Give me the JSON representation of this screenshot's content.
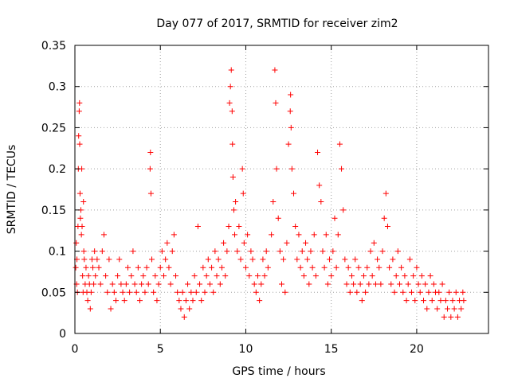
{
  "chart_data": {
    "type": "scatter",
    "title": "Day 077 of 2017, SRMTID for receiver zim2",
    "xlabel": "GPS time / hours",
    "ylabel": "SRMTID / TECUs",
    "xlim": [
      0,
      24.2
    ],
    "ylim": [
      0,
      0.35
    ],
    "xticks": [
      0,
      5,
      10,
      15,
      20
    ],
    "xtick_labels": [
      "0",
      "5",
      "10",
      "15",
      "20"
    ],
    "yticks": [
      0,
      0.05,
      0.1,
      0.15,
      0.2,
      0.25,
      0.3,
      0.35
    ],
    "ytick_labels": [
      "0",
      "0.05",
      "0.1",
      "0.15",
      "0.2",
      "0.25",
      "0.3",
      "0.35"
    ],
    "grid": true,
    "marker": "plus",
    "color": "#ff0000",
    "series": [
      {
        "name": "SRMTID",
        "points": [
          [
            0.05,
            0.08
          ],
          [
            0.08,
            0.11
          ],
          [
            0.1,
            0.06
          ],
          [
            0.12,
            0.09
          ],
          [
            0.15,
            0.05
          ],
          [
            0.18,
            0.13
          ],
          [
            0.2,
            0.2
          ],
          [
            0.22,
            0.24
          ],
          [
            0.25,
            0.27
          ],
          [
            0.27,
            0.28
          ],
          [
            0.28,
            0.23
          ],
          [
            0.3,
            0.17
          ],
          [
            0.32,
            0.14
          ],
          [
            0.35,
            0.15
          ],
          [
            0.38,
            0.12
          ],
          [
            0.4,
            0.2
          ],
          [
            0.42,
            0.13
          ],
          [
            0.45,
            0.07
          ],
          [
            0.48,
            0.05
          ],
          [
            0.5,
            0.16
          ],
          [
            0.52,
            0.1
          ],
          [
            0.55,
            0.09
          ],
          [
            0.6,
            0.06
          ],
          [
            0.65,
            0.08
          ],
          [
            0.7,
            0.05
          ],
          [
            0.75,
            0.04
          ],
          [
            0.8,
            0.07
          ],
          [
            0.85,
            0.06
          ],
          [
            0.9,
            0.03
          ],
          [
            0.95,
            0.05
          ],
          [
            1.0,
            0.09
          ],
          [
            1.05,
            0.08
          ],
          [
            1.1,
            0.06
          ],
          [
            1.15,
            0.1
          ],
          [
            1.2,
            0.07
          ],
          [
            1.3,
            0.09
          ],
          [
            1.4,
            0.08
          ],
          [
            1.5,
            0.06
          ],
          [
            1.6,
            0.1
          ],
          [
            1.7,
            0.12
          ],
          [
            1.8,
            0.07
          ],
          [
            1.9,
            0.05
          ],
          [
            2.0,
            0.09
          ],
          [
            2.1,
            0.03
          ],
          [
            2.2,
            0.06
          ],
          [
            2.3,
            0.05
          ],
          [
            2.4,
            0.04
          ],
          [
            2.5,
            0.07
          ],
          [
            2.6,
            0.09
          ],
          [
            2.7,
            0.06
          ],
          [
            2.8,
            0.05
          ],
          [
            2.9,
            0.04
          ],
          [
            3.0,
            0.06
          ],
          [
            3.1,
            0.08
          ],
          [
            3.2,
            0.05
          ],
          [
            3.3,
            0.07
          ],
          [
            3.4,
            0.1
          ],
          [
            3.5,
            0.06
          ],
          [
            3.6,
            0.05
          ],
          [
            3.7,
            0.08
          ],
          [
            3.8,
            0.04
          ],
          [
            3.9,
            0.06
          ],
          [
            4.0,
            0.07
          ],
          [
            4.1,
            0.05
          ],
          [
            4.2,
            0.08
          ],
          [
            4.3,
            0.06
          ],
          [
            4.4,
            0.2
          ],
          [
            4.42,
            0.22
          ],
          [
            4.45,
            0.17
          ],
          [
            4.5,
            0.09
          ],
          [
            4.6,
            0.05
          ],
          [
            4.7,
            0.07
          ],
          [
            4.8,
            0.04
          ],
          [
            4.9,
            0.06
          ],
          [
            5.0,
            0.08
          ],
          [
            5.1,
            0.1
          ],
          [
            5.2,
            0.07
          ],
          [
            5.3,
            0.09
          ],
          [
            5.4,
            0.11
          ],
          [
            5.5,
            0.08
          ],
          [
            5.6,
            0.06
          ],
          [
            5.7,
            0.1
          ],
          [
            5.8,
            0.12
          ],
          [
            5.9,
            0.07
          ],
          [
            6.0,
            0.05
          ],
          [
            6.1,
            0.04
          ],
          [
            6.2,
            0.03
          ],
          [
            6.3,
            0.05
          ],
          [
            6.4,
            0.02
          ],
          [
            6.5,
            0.04
          ],
          [
            6.6,
            0.06
          ],
          [
            6.7,
            0.03
          ],
          [
            6.8,
            0.05
          ],
          [
            6.9,
            0.04
          ],
          [
            7.0,
            0.07
          ],
          [
            7.1,
            0.05
          ],
          [
            7.2,
            0.13
          ],
          [
            7.3,
            0.06
          ],
          [
            7.4,
            0.04
          ],
          [
            7.5,
            0.08
          ],
          [
            7.6,
            0.05
          ],
          [
            7.7,
            0.07
          ],
          [
            7.8,
            0.09
          ],
          [
            7.9,
            0.06
          ],
          [
            8.0,
            0.08
          ],
          [
            8.1,
            0.05
          ],
          [
            8.2,
            0.1
          ],
          [
            8.3,
            0.07
          ],
          [
            8.4,
            0.09
          ],
          [
            8.5,
            0.06
          ],
          [
            8.6,
            0.08
          ],
          [
            8.7,
            0.11
          ],
          [
            8.8,
            0.07
          ],
          [
            8.9,
            0.1
          ],
          [
            9.0,
            0.13
          ],
          [
            9.05,
            0.28
          ],
          [
            9.1,
            0.3
          ],
          [
            9.15,
            0.32
          ],
          [
            9.2,
            0.27
          ],
          [
            9.22,
            0.23
          ],
          [
            9.25,
            0.19
          ],
          [
            9.3,
            0.15
          ],
          [
            9.35,
            0.12
          ],
          [
            9.4,
            0.16
          ],
          [
            9.5,
            0.1
          ],
          [
            9.6,
            0.13
          ],
          [
            9.7,
            0.09
          ],
          [
            9.8,
            0.2
          ],
          [
            9.85,
            0.17
          ],
          [
            9.9,
            0.11
          ],
          [
            10.0,
            0.08
          ],
          [
            10.1,
            0.12
          ],
          [
            10.2,
            0.07
          ],
          [
            10.3,
            0.1
          ],
          [
            10.4,
            0.09
          ],
          [
            10.5,
            0.06
          ],
          [
            10.6,
            0.05
          ],
          [
            10.7,
            0.07
          ],
          [
            10.8,
            0.04
          ],
          [
            10.9,
            0.06
          ],
          [
            11.0,
            0.09
          ],
          [
            11.1,
            0.07
          ],
          [
            11.2,
            0.1
          ],
          [
            11.3,
            0.08
          ],
          [
            11.5,
            0.12
          ],
          [
            11.6,
            0.16
          ],
          [
            11.7,
            0.32
          ],
          [
            11.75,
            0.28
          ],
          [
            11.8,
            0.2
          ],
          [
            11.9,
            0.14
          ],
          [
            12.0,
            0.1
          ],
          [
            12.1,
            0.06
          ],
          [
            12.2,
            0.09
          ],
          [
            12.3,
            0.05
          ],
          [
            12.4,
            0.11
          ],
          [
            12.5,
            0.23
          ],
          [
            12.6,
            0.27
          ],
          [
            12.62,
            0.29
          ],
          [
            12.65,
            0.25
          ],
          [
            12.7,
            0.2
          ],
          [
            12.8,
            0.17
          ],
          [
            12.9,
            0.13
          ],
          [
            13.0,
            0.09
          ],
          [
            13.1,
            0.12
          ],
          [
            13.2,
            0.08
          ],
          [
            13.3,
            0.1
          ],
          [
            13.4,
            0.07
          ],
          [
            13.5,
            0.11
          ],
          [
            13.6,
            0.09
          ],
          [
            13.7,
            0.06
          ],
          [
            13.8,
            0.1
          ],
          [
            13.9,
            0.08
          ],
          [
            14.0,
            0.12
          ],
          [
            14.1,
            0.07
          ],
          [
            14.2,
            0.22
          ],
          [
            14.3,
            0.18
          ],
          [
            14.4,
            0.16
          ],
          [
            14.5,
            0.1
          ],
          [
            14.6,
            0.08
          ],
          [
            14.7,
            0.12
          ],
          [
            14.8,
            0.06
          ],
          [
            14.9,
            0.09
          ],
          [
            15.0,
            0.07
          ],
          [
            15.1,
            0.1
          ],
          [
            15.2,
            0.14
          ],
          [
            15.3,
            0.08
          ],
          [
            15.4,
            0.12
          ],
          [
            15.5,
            0.23
          ],
          [
            15.6,
            0.2
          ],
          [
            15.7,
            0.15
          ],
          [
            15.8,
            0.09
          ],
          [
            15.9,
            0.06
          ],
          [
            16.0,
            0.08
          ],
          [
            16.1,
            0.05
          ],
          [
            16.2,
            0.07
          ],
          [
            16.3,
            0.06
          ],
          [
            16.4,
            0.09
          ],
          [
            16.5,
            0.05
          ],
          [
            16.6,
            0.08
          ],
          [
            16.7,
            0.06
          ],
          [
            16.8,
            0.04
          ],
          [
            16.9,
            0.07
          ],
          [
            17.0,
            0.05
          ],
          [
            17.1,
            0.08
          ],
          [
            17.2,
            0.06
          ],
          [
            17.3,
            0.1
          ],
          [
            17.4,
            0.07
          ],
          [
            17.5,
            0.11
          ],
          [
            17.6,
            0.06
          ],
          [
            17.7,
            0.09
          ],
          [
            17.8,
            0.08
          ],
          [
            17.9,
            0.06
          ],
          [
            18.0,
            0.1
          ],
          [
            18.1,
            0.14
          ],
          [
            18.2,
            0.17
          ],
          [
            18.3,
            0.13
          ],
          [
            18.4,
            0.08
          ],
          [
            18.5,
            0.06
          ],
          [
            18.6,
            0.09
          ],
          [
            18.7,
            0.05
          ],
          [
            18.8,
            0.07
          ],
          [
            18.9,
            0.1
          ],
          [
            19.0,
            0.06
          ],
          [
            19.1,
            0.08
          ],
          [
            19.2,
            0.05
          ],
          [
            19.3,
            0.07
          ],
          [
            19.4,
            0.04
          ],
          [
            19.5,
            0.06
          ],
          [
            19.6,
            0.09
          ],
          [
            19.7,
            0.05
          ],
          [
            19.8,
            0.07
          ],
          [
            19.9,
            0.04
          ],
          [
            20.0,
            0.08
          ],
          [
            20.1,
            0.06
          ],
          [
            20.2,
            0.05
          ],
          [
            20.3,
            0.07
          ],
          [
            20.4,
            0.04
          ],
          [
            20.5,
            0.06
          ],
          [
            20.6,
            0.03
          ],
          [
            20.7,
            0.05
          ],
          [
            20.8,
            0.07
          ],
          [
            20.9,
            0.04
          ],
          [
            21.0,
            0.06
          ],
          [
            21.1,
            0.05
          ],
          [
            21.2,
            0.03
          ],
          [
            21.3,
            0.05
          ],
          [
            21.4,
            0.04
          ],
          [
            21.5,
            0.06
          ],
          [
            21.6,
            0.02
          ],
          [
            21.7,
            0.04
          ],
          [
            21.8,
            0.03
          ],
          [
            21.9,
            0.05
          ],
          [
            22.0,
            0.02
          ],
          [
            22.1,
            0.04
          ],
          [
            22.2,
            0.03
          ],
          [
            22.3,
            0.05
          ],
          [
            22.4,
            0.02
          ],
          [
            22.5,
            0.04
          ],
          [
            22.6,
            0.03
          ],
          [
            22.7,
            0.05
          ],
          [
            22.75,
            0.04
          ]
        ]
      }
    ]
  }
}
